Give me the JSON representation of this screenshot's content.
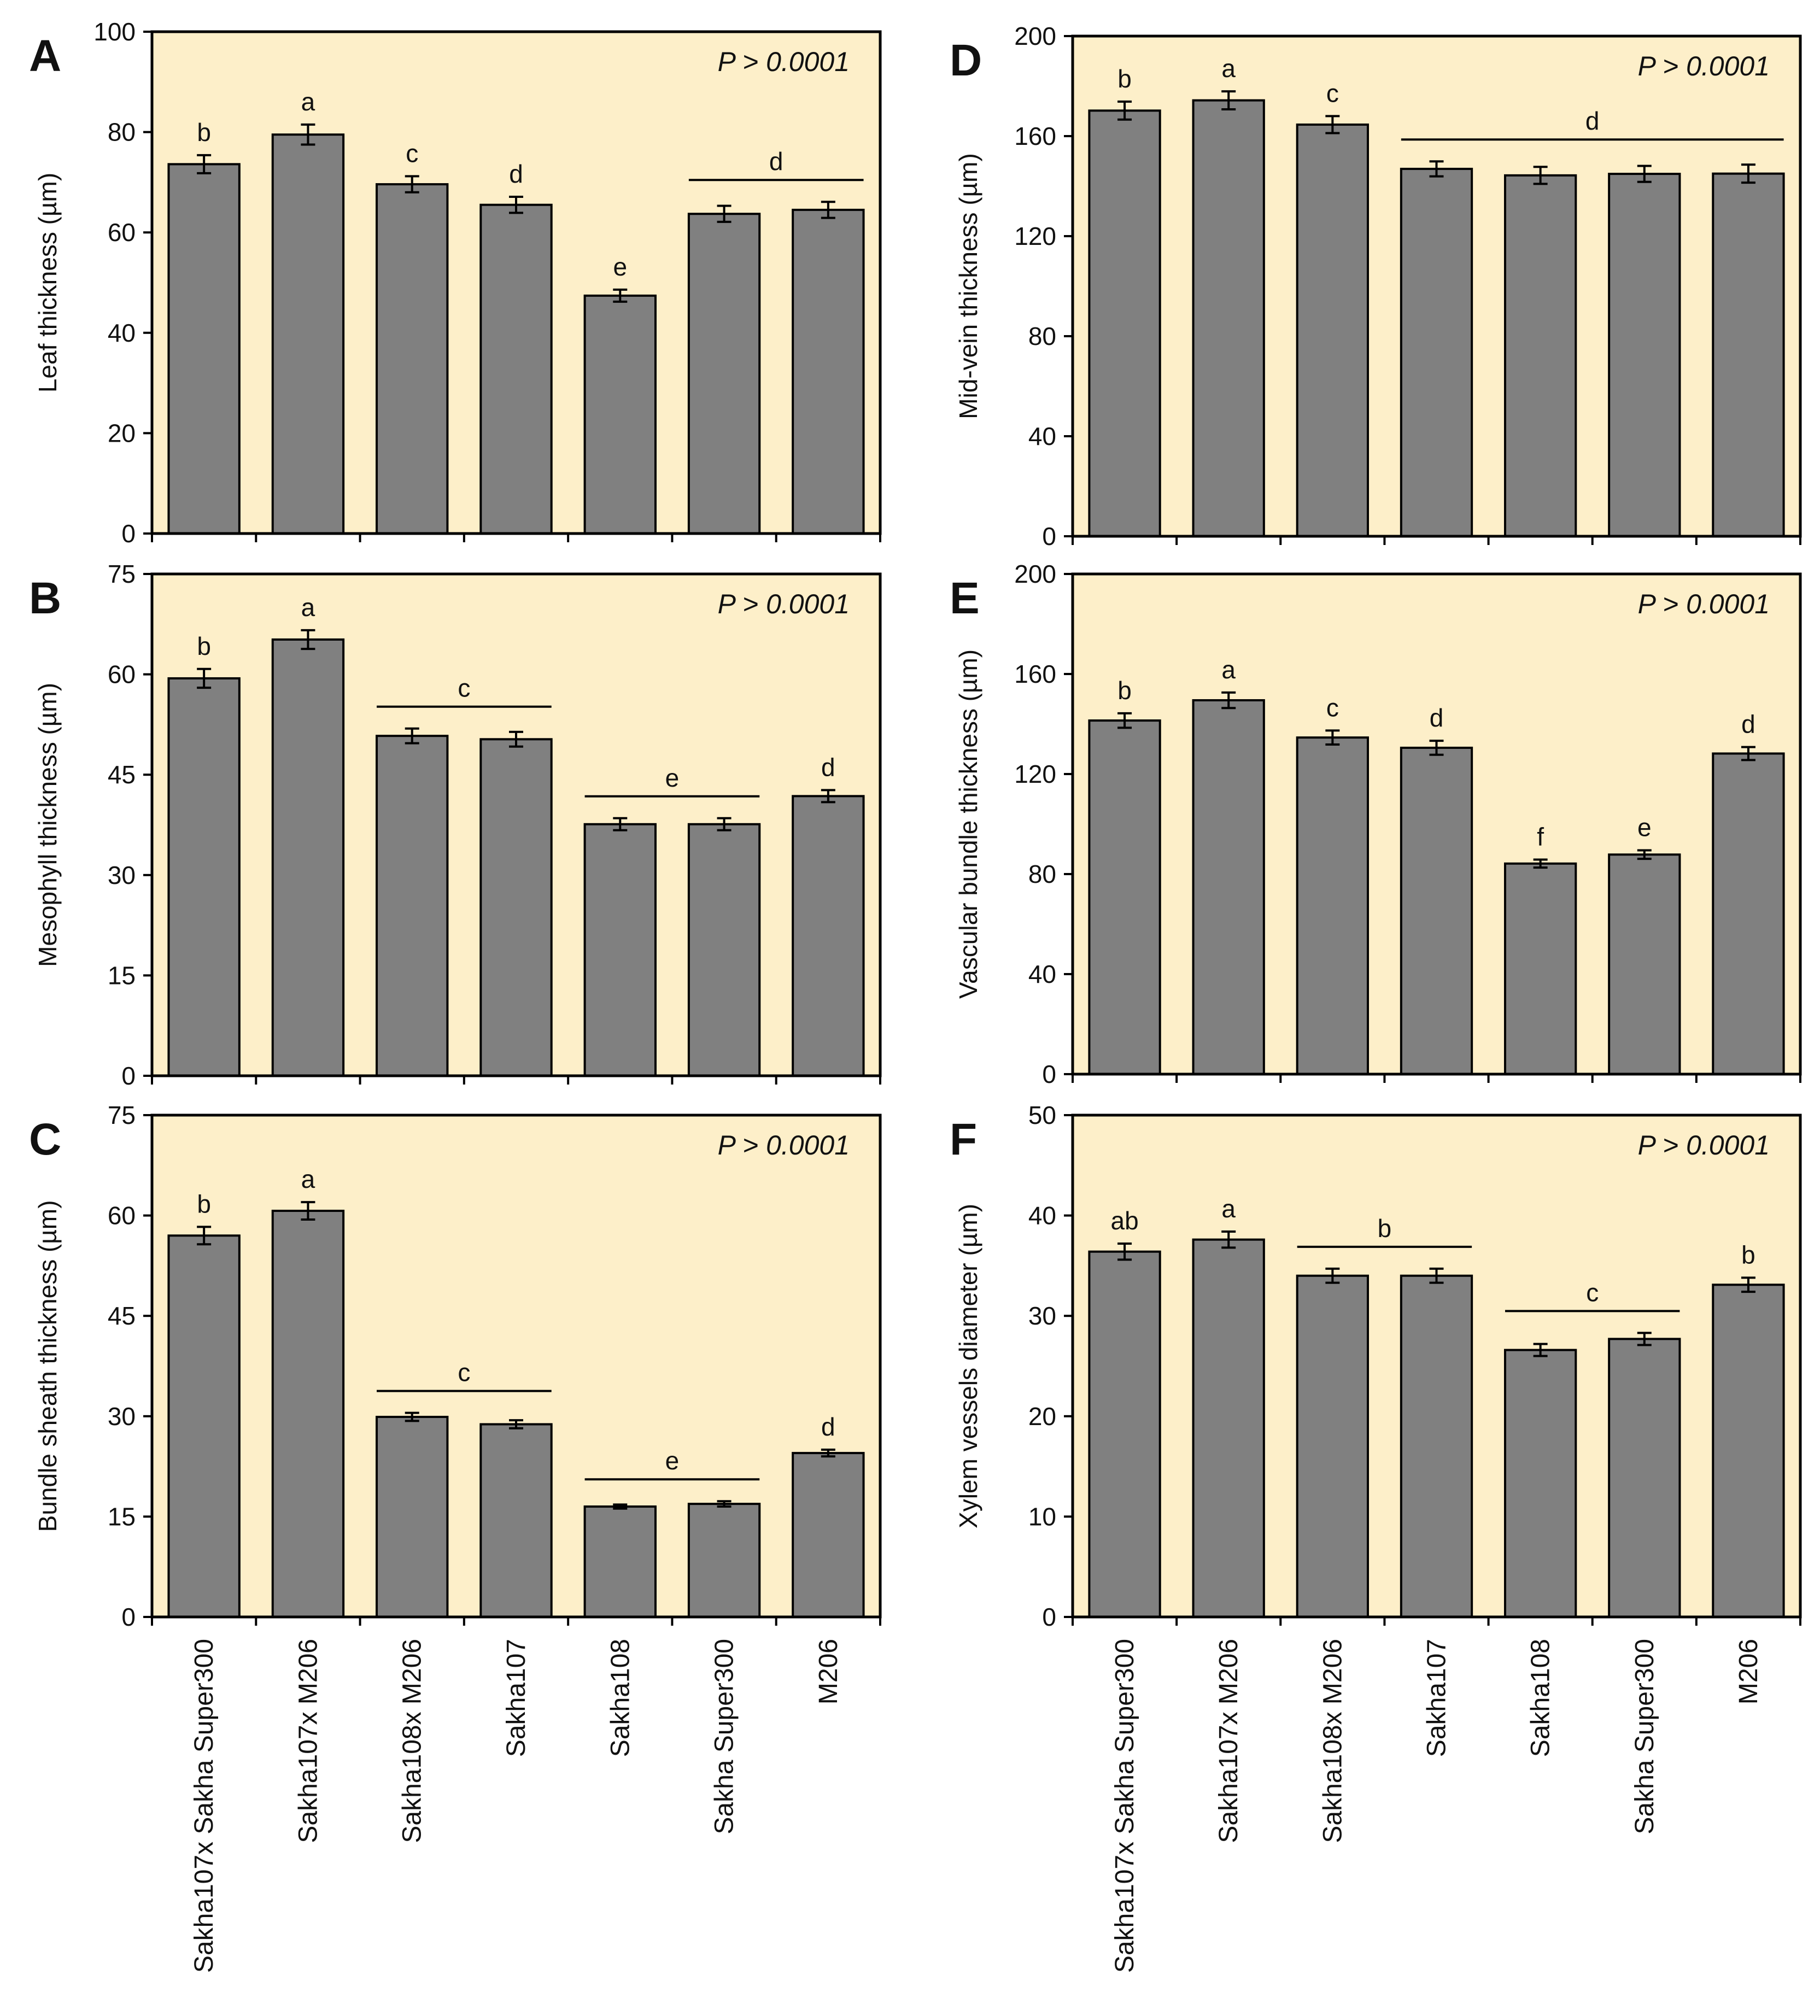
{
  "figure": {
    "categories": [
      "Sakha107x Sakha Super300",
      "Sakha107x M206",
      "Sakha108x M206",
      "Sakha107",
      "Sakha108",
      "Sakha Super300",
      "M206"
    ],
    "colors": {
      "plot_bg": "#fdefc9",
      "bar_fill": "#808080",
      "bar_stroke": "#000000",
      "axis": "#000000"
    }
  },
  "chart_data": [
    {
      "panel": "A",
      "type": "bar",
      "ylabel": "Leaf thickness (µm)",
      "ylim": [
        0,
        100
      ],
      "yticks": [
        0,
        20,
        40,
        60,
        80,
        100
      ],
      "categories": [
        "Sakha107x Sakha Super300",
        "Sakha107x M206",
        "Sakha108x M206",
        "Sakha107",
        "Sakha108",
        "Sakha Super300",
        "M206"
      ],
      "values": [
        73.6,
        79.5,
        69.6,
        65.5,
        47.4,
        63.7,
        64.5
      ],
      "errors": [
        1.8,
        2.0,
        1.6,
        1.6,
        1.2,
        1.6,
        1.6
      ],
      "annotation": "P > 0.0001",
      "letters": [
        {
          "text": "b",
          "from": 0,
          "to": 0
        },
        {
          "text": "a",
          "from": 1,
          "to": 1
        },
        {
          "text": "c",
          "from": 2,
          "to": 2
        },
        {
          "text": "d",
          "from": 3,
          "to": 3
        },
        {
          "text": "e",
          "from": 4,
          "to": 4
        },
        {
          "text": "d",
          "from": 5,
          "to": 6
        }
      ]
    },
    {
      "panel": "B",
      "type": "bar",
      "ylabel": "Mesophyll thickness (µm)",
      "ylim": [
        0,
        75
      ],
      "yticks": [
        0,
        15,
        30,
        45,
        60,
        75
      ],
      "categories": [
        "Sakha107x Sakha Super300",
        "Sakha107x M206",
        "Sakha108x M206",
        "Sakha107",
        "Sakha108",
        "Sakha Super300",
        "M206"
      ],
      "values": [
        59.4,
        65.2,
        50.8,
        50.3,
        37.6,
        37.6,
        41.8
      ],
      "errors": [
        1.4,
        1.4,
        1.1,
        1.1,
        0.9,
        0.9,
        0.9
      ],
      "annotation": "P > 0.0001",
      "letters": [
        {
          "text": "b",
          "from": 0,
          "to": 0
        },
        {
          "text": "a",
          "from": 1,
          "to": 1
        },
        {
          "text": "c",
          "from": 2,
          "to": 3
        },
        {
          "text": "e",
          "from": 4,
          "to": 5
        },
        {
          "text": "d",
          "from": 6,
          "to": 6
        }
      ]
    },
    {
      "panel": "C",
      "type": "bar",
      "ylabel": "Bundle sheath thickness (µm)",
      "ylim": [
        0,
        75
      ],
      "yticks": [
        0,
        15,
        30,
        45,
        60,
        75
      ],
      "categories": [
        "Sakha107x Sakha Super300",
        "Sakha107x M206",
        "Sakha108x M206",
        "Sakha107",
        "Sakha108",
        "Sakha Super300",
        "M206"
      ],
      "values": [
        57.0,
        60.7,
        29.9,
        28.8,
        16.5,
        16.9,
        24.5
      ],
      "errors": [
        1.3,
        1.3,
        0.6,
        0.6,
        0.3,
        0.4,
        0.5
      ],
      "annotation": "P > 0.0001",
      "letters": [
        {
          "text": "b",
          "from": 0,
          "to": 0
        },
        {
          "text": "a",
          "from": 1,
          "to": 1
        },
        {
          "text": "c",
          "from": 2,
          "to": 3
        },
        {
          "text": "e",
          "from": 4,
          "to": 5
        },
        {
          "text": "d",
          "from": 6,
          "to": 6
        }
      ]
    },
    {
      "panel": "D",
      "type": "bar",
      "ylabel": "Mid-vein thickness (µm)",
      "ylim": [
        0,
        200
      ],
      "yticks": [
        0,
        40,
        80,
        120,
        160,
        200
      ],
      "categories": [
        "Sakha107x Sakha Super300",
        "Sakha107x M206",
        "Sakha108x M206",
        "Sakha107",
        "Sakha108",
        "Sakha Super300",
        "M206"
      ],
      "values": [
        170.2,
        174.3,
        164.6,
        146.9,
        144.3,
        144.9,
        145.0
      ],
      "errors": [
        3.6,
        3.6,
        3.4,
        3.0,
        3.4,
        3.2,
        3.6
      ],
      "annotation": "P > 0.0001",
      "letters": [
        {
          "text": "b",
          "from": 0,
          "to": 0
        },
        {
          "text": "a",
          "from": 1,
          "to": 1
        },
        {
          "text": "c",
          "from": 2,
          "to": 2
        },
        {
          "text": "d",
          "from": 3,
          "to": 6
        }
      ]
    },
    {
      "panel": "E",
      "type": "bar",
      "ylabel": "Vascular bundle thickness (µm)",
      "ylim": [
        0,
        200
      ],
      "yticks": [
        0,
        40,
        80,
        120,
        160,
        200
      ],
      "categories": [
        "Sakha107x Sakha Super300",
        "Sakha107x M206",
        "Sakha108x M206",
        "Sakha107",
        "Sakha108",
        "Sakha Super300",
        "M206"
      ],
      "values": [
        141.4,
        149.5,
        134.6,
        130.5,
        84.2,
        87.8,
        128.2
      ],
      "errors": [
        2.9,
        3.1,
        2.8,
        2.8,
        1.6,
        1.7,
        2.6
      ],
      "annotation": "P > 0.0001",
      "letters": [
        {
          "text": "b",
          "from": 0,
          "to": 0
        },
        {
          "text": "a",
          "from": 1,
          "to": 1
        },
        {
          "text": "c",
          "from": 2,
          "to": 2
        },
        {
          "text": "d",
          "from": 3,
          "to": 3
        },
        {
          "text": "f",
          "from": 4,
          "to": 4
        },
        {
          "text": "e",
          "from": 5,
          "to": 5
        },
        {
          "text": "d",
          "from": 6,
          "to": 6
        }
      ]
    },
    {
      "panel": "F",
      "type": "bar",
      "ylabel": "Xylem vessels diameter (µm)",
      "ylim": [
        0,
        50
      ],
      "yticks": [
        0,
        10,
        20,
        30,
        40,
        50
      ],
      "categories": [
        "Sakha107x Sakha Super300",
        "Sakha107x M206",
        "Sakha108x M206",
        "Sakha107",
        "Sakha108",
        "Sakha Super300",
        "M206"
      ],
      "values": [
        36.4,
        37.6,
        34.0,
        34.0,
        26.6,
        27.7,
        33.1
      ],
      "errors": [
        0.8,
        0.8,
        0.7,
        0.7,
        0.6,
        0.6,
        0.7
      ],
      "annotation": "P > 0.0001",
      "letters": [
        {
          "text": "ab",
          "from": 0,
          "to": 0
        },
        {
          "text": "a",
          "from": 1,
          "to": 1
        },
        {
          "text": "b",
          "from": 2,
          "to": 3
        },
        {
          "text": "c",
          "from": 4,
          "to": 5
        },
        {
          "text": "b",
          "from": 6,
          "to": 6
        }
      ]
    }
  ]
}
